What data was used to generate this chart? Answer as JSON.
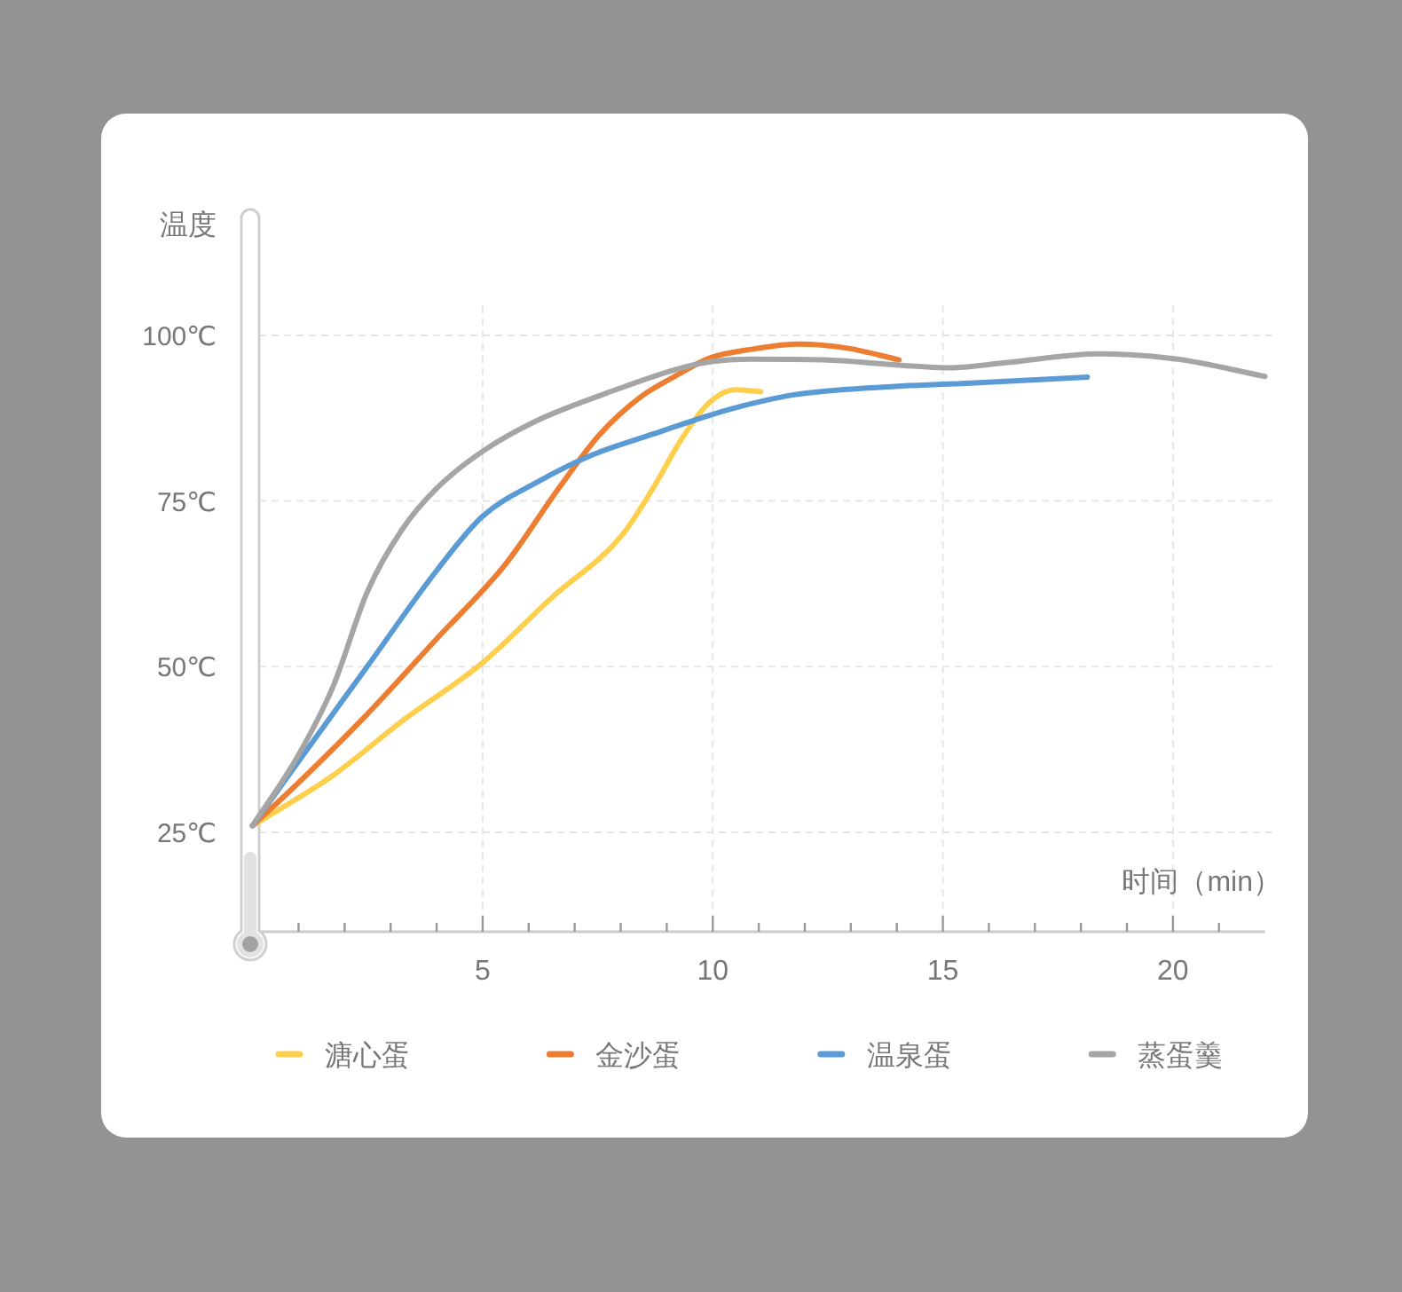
{
  "chart_data": {
    "type": "line",
    "xlabel": "时间（min）",
    "ylabel": "温度",
    "xlim": [
      0,
      22
    ],
    "ylim": [
      10,
      105
    ],
    "xticks": [
      {
        "value": 1,
        "label": null
      },
      {
        "value": 2,
        "label": null
      },
      {
        "value": 3,
        "label": null
      },
      {
        "value": 4,
        "label": null
      },
      5,
      {
        "value": 6,
        "label": null
      },
      {
        "value": 7,
        "label": null
      },
      {
        "value": 8,
        "label": null
      },
      {
        "value": 9,
        "label": null
      },
      10,
      {
        "value": 11,
        "label": null
      },
      {
        "value": 12,
        "label": null
      },
      {
        "value": 13,
        "label": null
      },
      {
        "value": 14,
        "label": null
      },
      15,
      {
        "value": 16,
        "label": null
      },
      {
        "value": 17,
        "label": null
      },
      {
        "value": 18,
        "label": null
      },
      {
        "value": 19,
        "label": null
      },
      20,
      {
        "value": 21,
        "label": null
      }
    ],
    "yticks": [
      {
        "value": 25,
        "label": "25℃"
      },
      {
        "value": 50,
        "label": "50℃"
      },
      {
        "value": 75,
        "label": "75℃"
      },
      {
        "value": 100,
        "label": "100℃"
      }
    ],
    "grid": true,
    "legend": "bottom",
    "series": [
      {
        "name": "溏心蛋",
        "color": "#fdcf4c",
        "x": [
          0,
          1.75,
          3.25,
          5.0,
          6.5,
          8.0,
          8.7,
          9.3,
          9.9,
          10.5,
          11.04
        ],
        "values": [
          26,
          33.6,
          41.8,
          50.6,
          60.4,
          69.6,
          76.9,
          84.1,
          89.7,
          91.8,
          91.5
        ]
      },
      {
        "name": "金沙蛋",
        "color": "#ed7d31",
        "x": [
          0,
          1.0,
          2.5,
          4.0,
          5.5,
          6.65,
          7.55,
          8.45,
          9.2,
          9.94,
          10.84,
          11.87,
          12.9,
          14.05
        ],
        "values": [
          26,
          32.5,
          42.9,
          54.2,
          65.5,
          76.9,
          85.1,
          90.8,
          93.9,
          96.6,
          97.9,
          98.7,
          98.1,
          96.3
        ]
      },
      {
        "name": "温泉蛋",
        "color": "#5b9bd5",
        "x": [
          0,
          1.0,
          2.5,
          4.0,
          5.0,
          6.2,
          7.4,
          8.7,
          9.6,
          10.45,
          11.74,
          13.7,
          15.6,
          18.14
        ],
        "values": [
          26,
          35.7,
          50.1,
          64.5,
          72.7,
          77.9,
          82,
          85.1,
          87.2,
          89,
          91,
          92.2,
          92.8,
          93.7
        ]
      },
      {
        "name": "蒸蛋羹",
        "color": "#a5a5a5",
        "x": [
          0,
          1.0,
          1.75,
          2.5,
          3.25,
          4.0,
          5.0,
          6.2,
          7.7,
          9.17,
          9.94,
          10.84,
          12.4,
          14.05,
          15.1,
          16.4,
          18.4,
          20.1,
          22.0
        ],
        "values": [
          26,
          36.7,
          47,
          61.4,
          70.7,
          76.9,
          82.5,
          87.2,
          91.3,
          94.8,
          96.0,
          96.4,
          96.3,
          95.5,
          95.1,
          95.9,
          97.2,
          96.4,
          93.8
        ]
      }
    ]
  }
}
